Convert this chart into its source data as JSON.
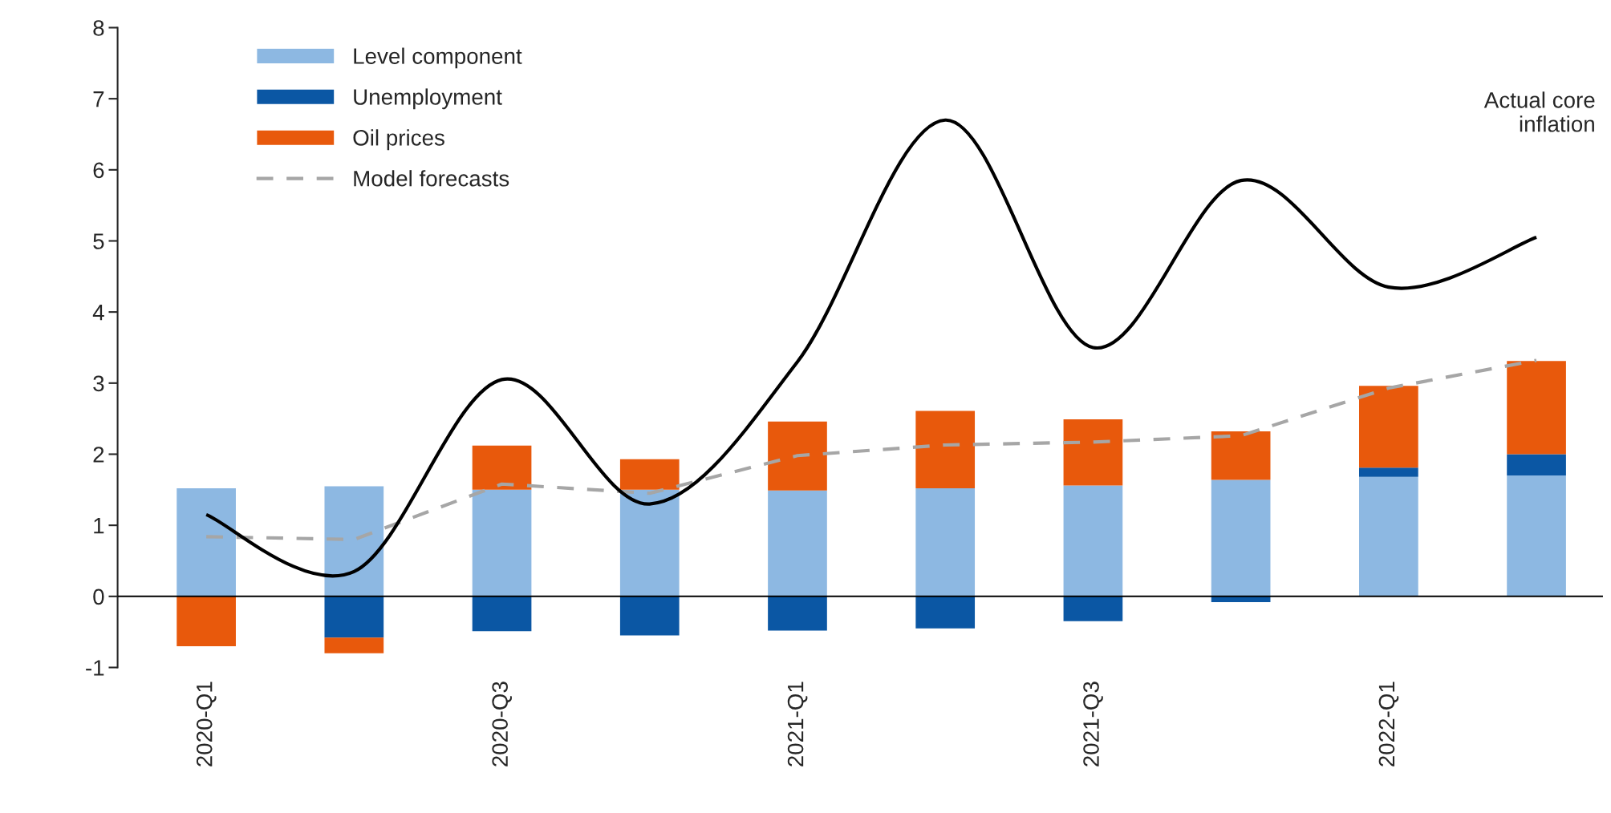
{
  "chart_data": {
    "type": "bar",
    "stacked": true,
    "categories": [
      "2020-Q1",
      null,
      "2020-Q3",
      null,
      "2021-Q1",
      null,
      "2021-Q3",
      null,
      "2022-Q1",
      null
    ],
    "series": [
      {
        "name": "Level component",
        "color": "#8db8e2",
        "values": [
          1.52,
          1.55,
          1.5,
          1.5,
          1.49,
          1.52,
          1.56,
          1.64,
          1.68,
          1.7
        ]
      },
      {
        "name": "Unemployment",
        "color": "#0b57a4",
        "values": [
          0,
          -0.58,
          -0.49,
          -0.55,
          -0.48,
          -0.45,
          -0.35,
          -0.08,
          0.13,
          0.3
        ]
      },
      {
        "name": "Oil prices",
        "color": "#e8590c",
        "values": [
          -0.7,
          -0.22,
          0.62,
          0.43,
          0.97,
          1.09,
          0.93,
          0.68,
          1.15,
          1.31
        ]
      },
      {
        "name": "Model forecasts",
        "type": "line",
        "line_style": "dashed",
        "color": "#a6a6a6",
        "values": [
          0.84,
          0.8,
          1.58,
          1.45,
          1.98,
          2.13,
          2.17,
          2.26,
          2.93,
          3.32
        ]
      },
      {
        "type": "line",
        "line_style": "solid",
        "color": "#000000",
        "values": [
          1.15,
          0.35,
          3.05,
          1.3,
          3.3,
          6.7,
          3.5,
          5.85,
          4.35,
          5.05
        ]
      }
    ],
    "ylim": [
      -1,
      8
    ],
    "yticks": [
      -1,
      0,
      1,
      2,
      3,
      4,
      5,
      6,
      7,
      8
    ],
    "legend": "top left",
    "ref_lines": [
      {
        "axis": "y",
        "value": 0,
        "color": "#000000"
      }
    ],
    "grid": false,
    "annotations": [
      "Actual core inflation"
    ]
  }
}
